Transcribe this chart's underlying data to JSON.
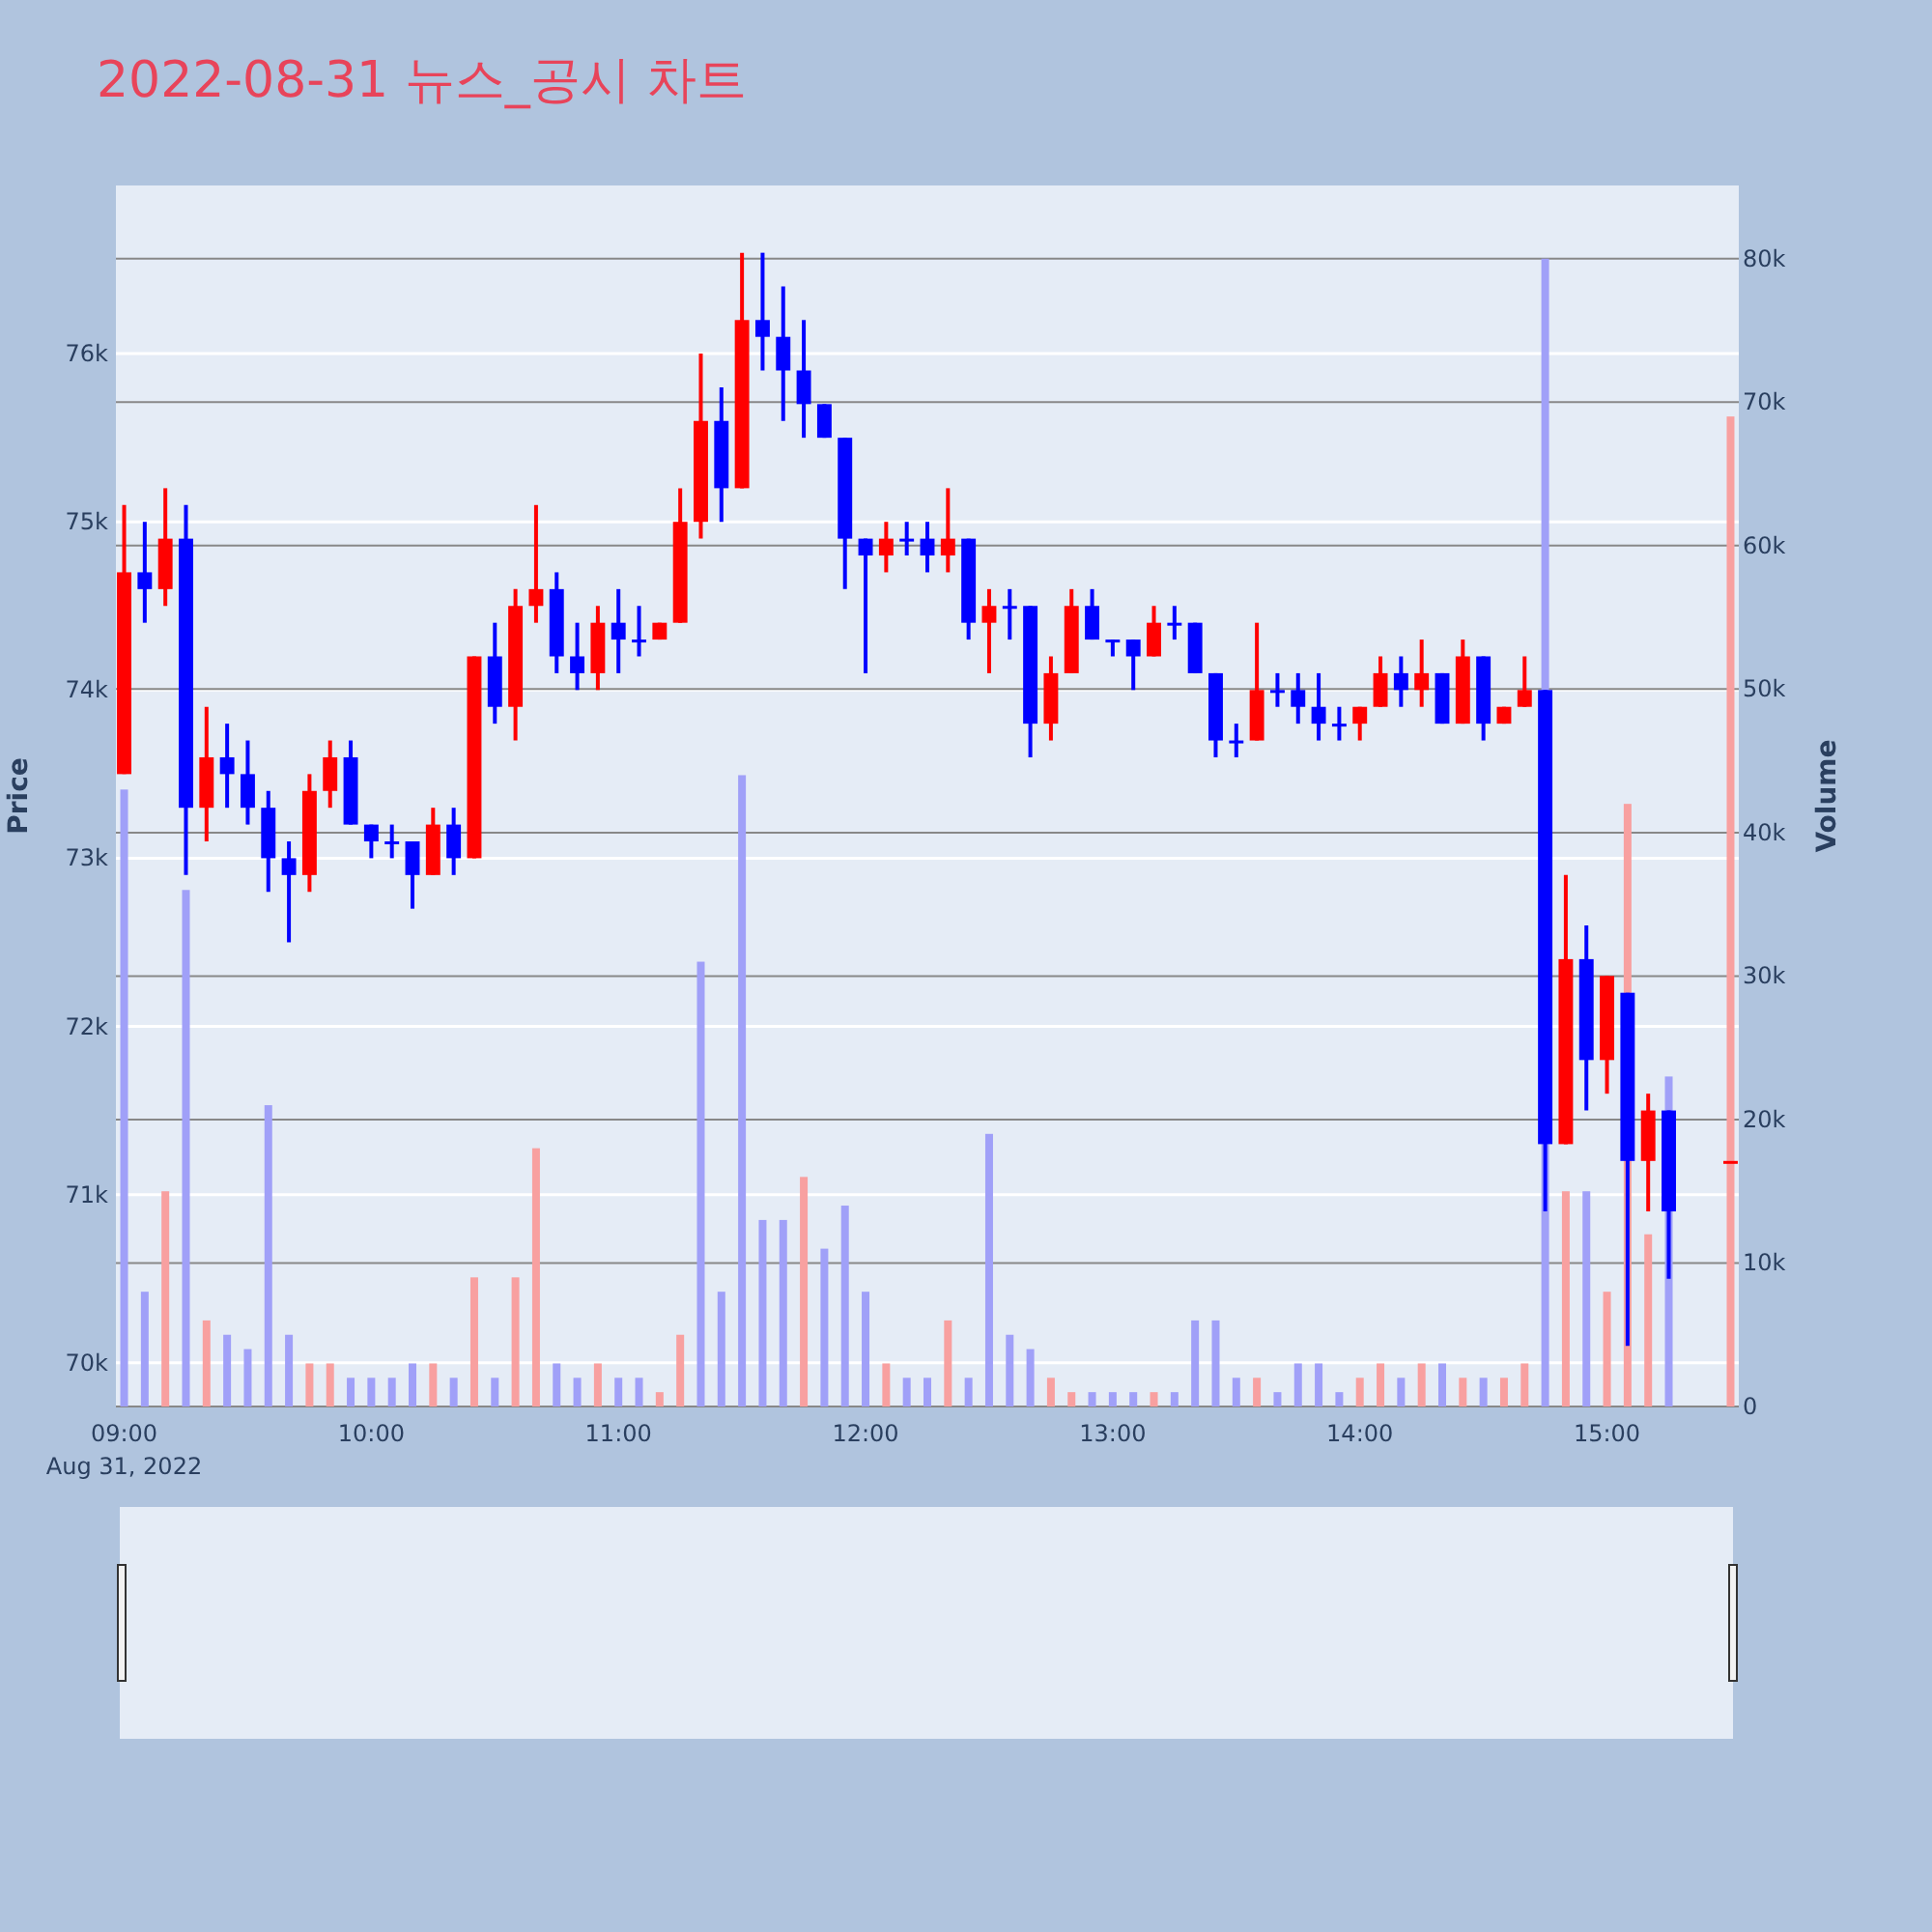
{
  "chart_data": {
    "type": "candlestick",
    "title": "2022-08-31 뉴스_공시 차트",
    "ylabel": "Price",
    "y2label": "Volume",
    "x": [
      "2022-08-31T09:00",
      "2022-08-31T09:05",
      "2022-08-31T09:10",
      "2022-08-31T09:15",
      "2022-08-31T09:20",
      "2022-08-31T09:25",
      "2022-08-31T09:30",
      "2022-08-31T09:35",
      "2022-08-31T09:40",
      "2022-08-31T09:45",
      "2022-08-31T09:50",
      "2022-08-31T09:55",
      "2022-08-31T10:00",
      "2022-08-31T10:05",
      "2022-08-31T10:10",
      "2022-08-31T10:15",
      "2022-08-31T10:20",
      "2022-08-31T10:25",
      "2022-08-31T10:30",
      "2022-08-31T10:35",
      "2022-08-31T10:40",
      "2022-08-31T10:45",
      "2022-08-31T10:50",
      "2022-08-31T10:55",
      "2022-08-31T11:00",
      "2022-08-31T11:05",
      "2022-08-31T11:10",
      "2022-08-31T11:15",
      "2022-08-31T11:20",
      "2022-08-31T11:25",
      "2022-08-31T11:30",
      "2022-08-31T11:35",
      "2022-08-31T11:40",
      "2022-08-31T11:45",
      "2022-08-31T11:50",
      "2022-08-31T11:55",
      "2022-08-31T12:00",
      "2022-08-31T12:05",
      "2022-08-31T12:10",
      "2022-08-31T12:15",
      "2022-08-31T12:20",
      "2022-08-31T12:25",
      "2022-08-31T12:30",
      "2022-08-31T12:35",
      "2022-08-31T12:40",
      "2022-08-31T12:45",
      "2022-08-31T12:50",
      "2022-08-31T12:55",
      "2022-08-31T13:00",
      "2022-08-31T13:05",
      "2022-08-31T13:10",
      "2022-08-31T13:15",
      "2022-08-31T13:20",
      "2022-08-31T13:25",
      "2022-08-31T13:30",
      "2022-08-31T13:35",
      "2022-08-31T13:40",
      "2022-08-31T13:45",
      "2022-08-31T13:50",
      "2022-08-31T13:55",
      "2022-08-31T14:00",
      "2022-08-31T14:05",
      "2022-08-31T14:10",
      "2022-08-31T14:15",
      "2022-08-31T14:20",
      "2022-08-31T14:25",
      "2022-08-31T14:30",
      "2022-08-31T14:35",
      "2022-08-31T14:40",
      "2022-08-31T14:45",
      "2022-08-31T14:50",
      "2022-08-31T14:55",
      "2022-08-31T15:00",
      "2022-08-31T15:05",
      "2022-08-31T15:10",
      "2022-08-31T15:15",
      "2022-08-31T15:30"
    ],
    "xlim": [
      "2022-08-31T08:58",
      "2022-08-31T15:32"
    ],
    "xticks": [
      {
        "value": "2022-08-31T09:00",
        "label": "09:00\nAug 31, 2022"
      },
      {
        "value": "2022-08-31T10:00",
        "label": "10:00"
      },
      {
        "value": "2022-08-31T11:00",
        "label": "11:00"
      },
      {
        "value": "2022-08-31T12:00",
        "label": "12:00"
      },
      {
        "value": "2022-08-31T13:00",
        "label": "13:00"
      },
      {
        "value": "2022-08-31T14:00",
        "label": "14:00"
      },
      {
        "value": "2022-08-31T15:00",
        "label": "15:00"
      }
    ],
    "ylim": [
      69740,
      77000
    ],
    "yticks": [
      {
        "value": 70000,
        "label": "70k"
      },
      {
        "value": 71000,
        "label": "71k"
      },
      {
        "value": 72000,
        "label": "72k"
      },
      {
        "value": 73000,
        "label": "73k"
      },
      {
        "value": 74000,
        "label": "74k"
      },
      {
        "value": 75000,
        "label": "75k"
      },
      {
        "value": 76000,
        "label": "76k"
      }
    ],
    "y2lim": [
      0,
      85100
    ],
    "y2ticks": [
      0,
      {
        "value": 10000,
        "label": "10k"
      },
      {
        "value": 20000,
        "label": "20k"
      },
      {
        "value": 30000,
        "label": "30k"
      },
      {
        "value": 40000,
        "label": "40k"
      },
      {
        "value": 50000,
        "label": "50k"
      },
      {
        "value": 60000,
        "label": "60k"
      },
      {
        "value": 70000,
        "label": "70k"
      },
      {
        "value": 80000,
        "label": "80k"
      }
    ],
    "grid": "y",
    "series": [
      {
        "ohlc": [
          [
            73500,
            75100,
            73500,
            74700
          ],
          [
            74700,
            75000,
            74400,
            74600
          ],
          [
            74600,
            75200,
            74500,
            74900
          ],
          [
            74900,
            75100,
            72900,
            73300
          ],
          [
            73300,
            73900,
            73100,
            73600
          ],
          [
            73600,
            73800,
            73300,
            73500
          ],
          [
            73500,
            73700,
            73200,
            73300
          ],
          [
            73300,
            73400,
            72800,
            73000
          ],
          [
            73000,
            73100,
            72500,
            72900
          ],
          [
            72900,
            73500,
            72800,
            73400
          ],
          [
            73400,
            73700,
            73300,
            73600
          ],
          [
            73600,
            73700,
            73200,
            73200
          ],
          [
            73200,
            73200,
            73000,
            73100
          ],
          [
            73100,
            73200,
            73000,
            73100
          ],
          [
            73100,
            73100,
            72700,
            72900
          ],
          [
            72900,
            73300,
            72900,
            73200
          ],
          [
            73200,
            73300,
            72900,
            73000
          ],
          [
            73000,
            74200,
            73000,
            74200
          ],
          [
            74200,
            74400,
            73800,
            73900
          ],
          [
            73900,
            74600,
            73700,
            74500
          ],
          [
            74500,
            75100,
            74400,
            74600
          ],
          [
            74600,
            74700,
            74100,
            74200
          ],
          [
            74200,
            74400,
            74000,
            74100
          ],
          [
            74100,
            74500,
            74000,
            74400
          ],
          [
            74400,
            74600,
            74100,
            74300
          ],
          [
            74300,
            74500,
            74200,
            74300
          ],
          [
            74300,
            74400,
            74300,
            74400
          ],
          [
            74400,
            75200,
            74400,
            75000
          ],
          [
            75000,
            76000,
            74900,
            75600
          ],
          [
            75600,
            75800,
            75000,
            75200
          ],
          [
            75200,
            76600,
            75200,
            76200
          ],
          [
            76200,
            76600,
            75900,
            76100
          ],
          [
            76100,
            76400,
            75600,
            75900
          ],
          [
            75900,
            76200,
            75500,
            75700
          ],
          [
            75700,
            75700,
            75500,
            75500
          ],
          [
            75500,
            75500,
            74600,
            74900
          ],
          [
            74900,
            74900,
            74100,
            74800
          ],
          [
            74800,
            75000,
            74700,
            74900
          ],
          [
            74900,
            75000,
            74800,
            74900
          ],
          [
            74900,
            75000,
            74700,
            74800
          ],
          [
            74800,
            75200,
            74700,
            74900
          ],
          [
            74900,
            74900,
            74300,
            74400
          ],
          [
            74400,
            74600,
            74100,
            74500
          ],
          [
            74500,
            74600,
            74300,
            74500
          ],
          [
            74500,
            74500,
            73600,
            73800
          ],
          [
            73800,
            74200,
            73700,
            74100
          ],
          [
            74100,
            74600,
            74100,
            74500
          ],
          [
            74500,
            74600,
            74300,
            74300
          ],
          [
            74300,
            74300,
            74200,
            74300
          ],
          [
            74300,
            74300,
            74000,
            74200
          ],
          [
            74200,
            74500,
            74200,
            74400
          ],
          [
            74400,
            74500,
            74300,
            74400
          ],
          [
            74400,
            74400,
            74100,
            74100
          ],
          [
            74100,
            74100,
            73600,
            73700
          ],
          [
            73700,
            73800,
            73600,
            73700
          ],
          [
            73700,
            74400,
            73700,
            74000
          ],
          [
            74000,
            74100,
            73900,
            74000
          ],
          [
            74000,
            74100,
            73800,
            73900
          ],
          [
            73900,
            74100,
            73700,
            73800
          ],
          [
            73800,
            73900,
            73700,
            73800
          ],
          [
            73800,
            73900,
            73700,
            73900
          ],
          [
            73900,
            74200,
            73900,
            74100
          ],
          [
            74100,
            74200,
            73900,
            74000
          ],
          [
            74000,
            74300,
            73900,
            74100
          ],
          [
            74100,
            74100,
            73800,
            73800
          ],
          [
            73800,
            74300,
            73800,
            74200
          ],
          [
            74200,
            74200,
            73700,
            73800
          ],
          [
            73800,
            73900,
            73800,
            73900
          ],
          [
            73900,
            74200,
            73900,
            74000
          ],
          [
            74000,
            74000,
            70900,
            71300
          ],
          [
            71300,
            72900,
            71300,
            72400
          ],
          [
            72400,
            72600,
            71500,
            71800
          ],
          [
            71800,
            72300,
            71600,
            72300
          ],
          [
            72200,
            72200,
            70100,
            71200
          ],
          [
            71200,
            71600,
            70900,
            71500
          ],
          [
            71500,
            71500,
            70500,
            70900
          ],
          [
            71200,
            71200,
            71200,
            71200
          ]
        ],
        "colors": [
          "#ff0000",
          "#0000ff",
          "#ff0000",
          "#0000ff",
          "#ff0000",
          "#0000ff",
          "#0000ff",
          "#0000ff",
          "#0000ff",
          "#ff0000",
          "#ff0000",
          "#0000ff",
          "#0000ff",
          "#0000ff",
          "#0000ff",
          "#ff0000",
          "#0000ff",
          "#ff0000",
          "#0000ff",
          "#ff0000",
          "#ff0000",
          "#0000ff",
          "#0000ff",
          "#ff0000",
          "#0000ff",
          "#0000ff",
          "#ff0000",
          "#ff0000",
          "#ff0000",
          "#0000ff",
          "#ff0000",
          "#0000ff",
          "#0000ff",
          "#0000ff",
          "#0000ff",
          "#0000ff",
          "#0000ff",
          "#ff0000",
          "#0000ff",
          "#0000ff",
          "#ff0000",
          "#0000ff",
          "#ff0000",
          "#0000ff",
          "#0000ff",
          "#ff0000",
          "#ff0000",
          "#0000ff",
          "#0000ff",
          "#0000ff",
          "#ff0000",
          "#0000ff",
          "#0000ff",
          "#0000ff",
          "#0000ff",
          "#ff0000",
          "#0000ff",
          "#0000ff",
          "#0000ff",
          "#0000ff",
          "#ff0000",
          "#ff0000",
          "#0000ff",
          "#ff0000",
          "#0000ff",
          "#ff0000",
          "#0000ff",
          "#ff0000",
          "#ff0000",
          "#0000ff",
          "#ff0000",
          "#0000ff",
          "#ff0000",
          "#0000ff",
          "#ff0000",
          "#0000ff",
          "#ff0000"
        ]
      },
      {
        "type": "bar",
        "axis": "y2",
        "values": [
          43000,
          8000,
          15000,
          36000,
          6000,
          5000,
          4000,
          21000,
          5000,
          3000,
          3000,
          2000,
          2000,
          2000,
          3000,
          3000,
          2000,
          9000,
          2000,
          9000,
          18000,
          3000,
          2000,
          3000,
          2000,
          2000,
          1000,
          5000,
          31000,
          8000,
          44000,
          13000,
          13000,
          16000,
          11000,
          14000,
          8000,
          3000,
          2000,
          2000,
          6000,
          2000,
          19000,
          5000,
          4000,
          2000,
          1000,
          1000,
          1000,
          1000,
          1000,
          1000,
          6000,
          6000,
          2000,
          2000,
          1000,
          3000,
          3000,
          1000,
          2000,
          3000,
          2000,
          3000,
          3000,
          2000,
          2000,
          2000,
          3000,
          80000,
          15000,
          15000,
          8000,
          42000,
          12000,
          23000,
          69000
        ],
        "colors": [
          "#a0a0f8",
          "#a0a0f8",
          "#f8a0a0",
          "#a0a0f8",
          "#f8a0a0",
          "#a0a0f8",
          "#a0a0f8",
          "#a0a0f8",
          "#a0a0f8",
          "#f8a0a0",
          "#f8a0a0",
          "#a0a0f8",
          "#a0a0f8",
          "#a0a0f8",
          "#a0a0f8",
          "#f8a0a0",
          "#a0a0f8",
          "#f8a0a0",
          "#a0a0f8",
          "#f8a0a0",
          "#f8a0a0",
          "#a0a0f8",
          "#a0a0f8",
          "#f8a0a0",
          "#a0a0f8",
          "#a0a0f8",
          "#f8a0a0",
          "#f8a0a0",
          "#a0a0f8",
          "#a0a0f8",
          "#a0a0f8",
          "#a0a0f8",
          "#a0a0f8",
          "#f8a0a0",
          "#a0a0f8",
          "#a0a0f8",
          "#a0a0f8",
          "#f8a0a0",
          "#a0a0f8",
          "#a0a0f8",
          "#f8a0a0",
          "#a0a0f8",
          "#a0a0f8",
          "#a0a0f8",
          "#a0a0f8",
          "#f8a0a0",
          "#f8a0a0",
          "#a0a0f8",
          "#a0a0f8",
          "#a0a0f8",
          "#f8a0a0",
          "#a0a0f8",
          "#a0a0f8",
          "#a0a0f8",
          "#a0a0f8",
          "#f8a0a0",
          "#a0a0f8",
          "#a0a0f8",
          "#a0a0f8",
          "#a0a0f8",
          "#f8a0a0",
          "#f8a0a0",
          "#a0a0f8",
          "#f8a0a0",
          "#a0a0f8",
          "#f8a0a0",
          "#a0a0f8",
          "#f8a0a0",
          "#f8a0a0",
          "#a0a0f8",
          "#f8a0a0",
          "#a0a0f8",
          "#f8a0a0",
          "#f8a0a0",
          "#f8a0a0",
          "#a0a0f8",
          "#f8a0a0"
        ]
      }
    ]
  }
}
